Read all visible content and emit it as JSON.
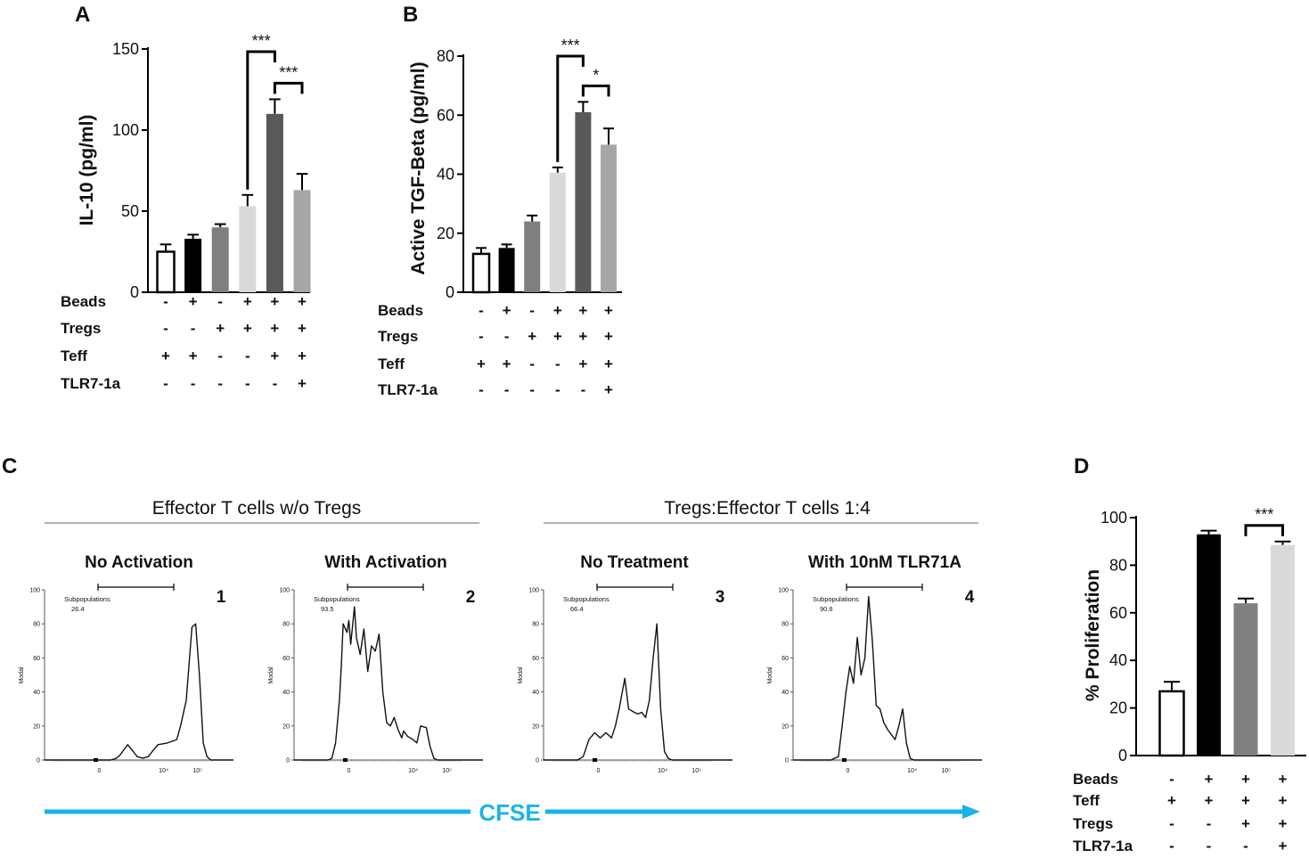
{
  "figure": {
    "panel_labels": [
      "A",
      "B",
      "C",
      "D"
    ],
    "cfse_label": "CFSE",
    "cfse_color": "#19b3ec"
  },
  "chart_data": [
    {
      "panel": "A",
      "type": "bar",
      "ylabel": "IL-10 (pg/ml)",
      "ylim": [
        0,
        150
      ],
      "yticks": [
        0,
        50,
        100,
        150
      ],
      "values": [
        25,
        33,
        40,
        53,
        110,
        63
      ],
      "errors": [
        4.5,
        2.5,
        2,
        7,
        9,
        10
      ],
      "colors": [
        "#ffffff",
        "#000000",
        "#7f7f7f",
        "#d9d9d9",
        "#595959",
        "#a6a6a9"
      ],
      "conditions": {
        "labels": [
          "Beads",
          "Tregs",
          "Teff",
          "TLR7-1a"
        ],
        "rows": [
          [
            "-",
            "+",
            "-",
            "+",
            "+",
            "+"
          ],
          [
            "-",
            "-",
            "+",
            "+",
            "+",
            "+"
          ],
          [
            "+",
            "+",
            "-",
            "-",
            "+",
            "+"
          ],
          [
            "-",
            "-",
            "-",
            "-",
            "-",
            "+"
          ]
        ]
      },
      "significance": [
        {
          "from": 3,
          "to": 4,
          "label": "***",
          "level": 1
        },
        {
          "from": 4,
          "to": 5,
          "label": "***",
          "level": 0
        }
      ]
    },
    {
      "panel": "B",
      "type": "bar",
      "ylabel": "Active TGF-Beta (pg/ml)",
      "ylim": [
        0,
        80
      ],
      "yticks": [
        0,
        20,
        40,
        60,
        80
      ],
      "values": [
        13,
        15,
        24,
        40.5,
        61,
        50
      ],
      "errors": [
        2,
        1.2,
        2,
        1.8,
        3.5,
        5.5
      ],
      "colors": [
        "#ffffff",
        "#000000",
        "#7f7f7f",
        "#d9d9d9",
        "#595959",
        "#a6a6a9"
      ],
      "conditions": {
        "labels": [
          "Beads",
          "Tregs",
          "Teff",
          "TLR7-1a"
        ],
        "rows": [
          [
            "-",
            "+",
            "-",
            "+",
            "+",
            "+"
          ],
          [
            "-",
            "-",
            "+",
            "+",
            "+",
            "+"
          ],
          [
            "+",
            "+",
            "-",
            "-",
            "+",
            "+"
          ],
          [
            "-",
            "-",
            "-",
            "-",
            "-",
            "+"
          ]
        ]
      },
      "significance": [
        {
          "from": 3,
          "to": 4,
          "label": "***",
          "level": 1
        },
        {
          "from": 4,
          "to": 5,
          "label": "*",
          "level": 0
        }
      ]
    },
    {
      "panel": "D",
      "type": "bar",
      "ylabel": "% Proliferation",
      "ylim": [
        0,
        100
      ],
      "yticks": [
        0,
        20,
        40,
        60,
        80,
        100
      ],
      "values": [
        27,
        93,
        64,
        88.5
      ],
      "errors": [
        4,
        1.5,
        2,
        1.5
      ],
      "colors": [
        "#ffffff",
        "#000000",
        "#808080",
        "#d9d9d9"
      ],
      "conditions": {
        "labels": [
          "Beads",
          "Teff",
          "Tregs",
          "TLR7-1a"
        ],
        "rows": [
          [
            "-",
            "+",
            "+",
            "+"
          ],
          [
            "+",
            "+",
            "+",
            "+"
          ],
          [
            "-",
            "-",
            "+",
            "+"
          ],
          [
            "-",
            "-",
            "-",
            "+"
          ]
        ]
      },
      "significance": [
        {
          "from": 2,
          "to": 3,
          "label": "***",
          "level": 0
        }
      ]
    },
    {
      "panel": "C",
      "type": "line",
      "group_titles": [
        "Effector T cells w/o Tregs",
        "Tregs:Effector T cells 1:4"
      ],
      "ylabel": "Modal",
      "yticks": [
        "0",
        "20",
        "40",
        "60",
        "80",
        "100"
      ],
      "xticks": [
        "0",
        "10⁴",
        "10⁵"
      ],
      "gate_label": "Subpopulations",
      "histograms": [
        {
          "title": "No Activation",
          "number": "1",
          "gate_value": "26.4",
          "x": [
            0.0,
            0.35,
            0.38,
            0.4,
            0.42,
            0.44,
            0.47,
            0.49,
            0.52,
            0.55,
            0.57,
            0.6,
            0.65,
            0.7,
            0.72,
            0.75,
            0.78,
            0.8,
            0.82,
            0.84,
            0.86,
            0.88,
            0.9,
            1.0
          ],
          "y": [
            0,
            0,
            1,
            3,
            6,
            9,
            5,
            2,
            1,
            2,
            5,
            9,
            10,
            12,
            20,
            35,
            78,
            80,
            50,
            10,
            2,
            0,
            0,
            0
          ]
        },
        {
          "title": "With Activation",
          "number": "2",
          "gate_value": "93.5",
          "x": [
            0.0,
            0.18,
            0.2,
            0.22,
            0.24,
            0.25,
            0.26,
            0.28,
            0.29,
            0.3,
            0.32,
            0.33,
            0.35,
            0.37,
            0.39,
            0.41,
            0.43,
            0.45,
            0.47,
            0.49,
            0.51,
            0.53,
            0.55,
            0.57,
            0.58,
            0.6,
            0.63,
            0.65,
            0.67,
            0.7,
            0.72,
            0.74,
            0.76,
            0.78,
            0.8,
            1.0
          ],
          "y": [
            0,
            0,
            1,
            10,
            35,
            55,
            80,
            75,
            82,
            68,
            90,
            72,
            62,
            77,
            52,
            67,
            64,
            74,
            40,
            22,
            20,
            25,
            18,
            13,
            17,
            14,
            12,
            10,
            20,
            19,
            8,
            1,
            0,
            0,
            0,
            0
          ]
        },
        {
          "title": "No Treatment",
          "number": "3",
          "gate_value": "66.4",
          "x": [
            0.0,
            0.18,
            0.21,
            0.24,
            0.27,
            0.3,
            0.33,
            0.36,
            0.38,
            0.4,
            0.43,
            0.45,
            0.48,
            0.5,
            0.52,
            0.54,
            0.56,
            0.58,
            0.6,
            0.62,
            0.64,
            0.66,
            0.68,
            0.7,
            0.72,
            0.74,
            0.76,
            0.78,
            0.8,
            1.0
          ],
          "y": [
            0,
            0,
            2,
            12,
            16,
            13,
            16,
            13,
            20,
            30,
            48,
            30,
            28,
            27,
            28,
            25,
            35,
            60,
            80,
            30,
            5,
            1,
            0,
            0,
            0,
            0,
            0,
            0,
            0,
            0
          ]
        },
        {
          "title": "With 10nM TLR71A",
          "number": "4",
          "gate_value": "90.6",
          "x": [
            0.0,
            0.2,
            0.24,
            0.26,
            0.28,
            0.3,
            0.32,
            0.34,
            0.36,
            0.38,
            0.4,
            0.42,
            0.44,
            0.46,
            0.48,
            0.5,
            0.52,
            0.54,
            0.56,
            0.58,
            0.6,
            0.62,
            0.64,
            0.66,
            0.68,
            0.7,
            0.72,
            0.74,
            0.76,
            0.78,
            0.8,
            1.0
          ],
          "y": [
            0,
            0,
            2,
            20,
            40,
            55,
            45,
            72,
            50,
            60,
            96,
            70,
            32,
            30,
            22,
            18,
            15,
            12,
            20,
            30,
            10,
            1,
            0,
            0,
            0,
            0,
            0,
            0,
            0,
            0,
            0,
            0
          ]
        }
      ]
    }
  ]
}
